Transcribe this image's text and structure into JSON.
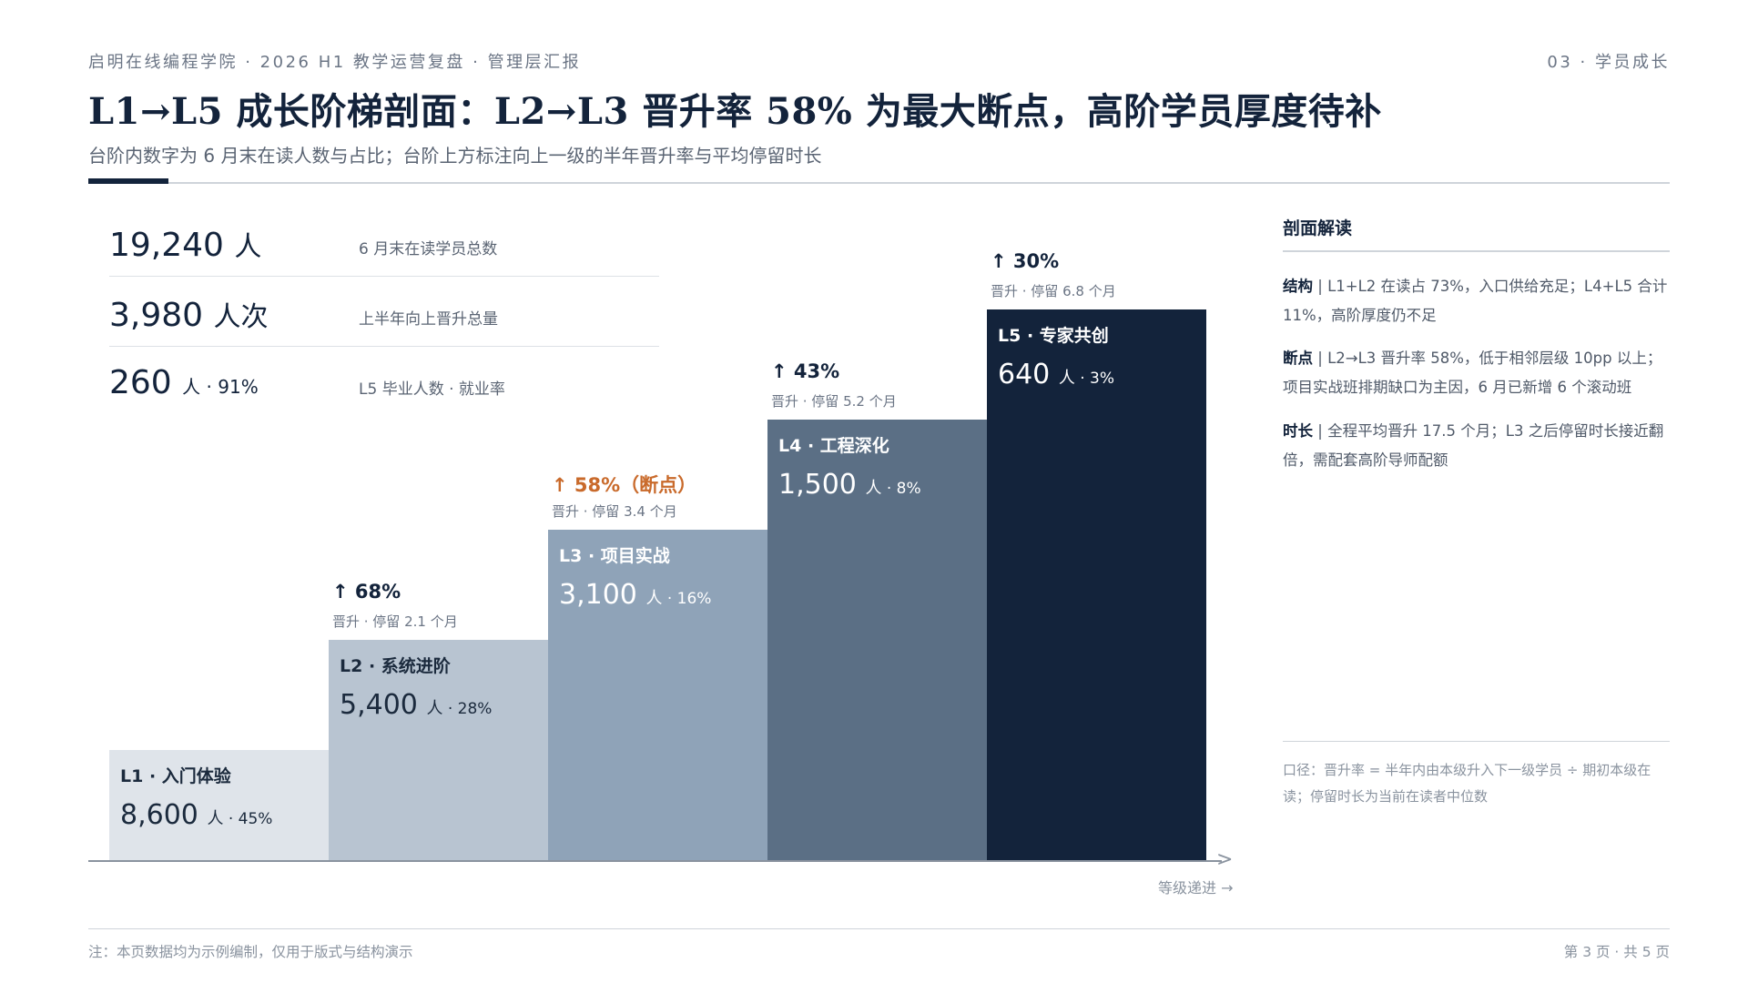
{
  "header": {
    "org_line": "启明在线编程学院 · 2026 H1 教学运营复盘 · 管理层汇报",
    "section": "03 · 学员成长",
    "title": "L1→L5 成长阶梯剖面：L2→L3 晋升率 58% 为最大断点，高阶学员厚度待补",
    "subtitle": "台阶内数字为 6 月末在读人数与占比；台阶上方标注向上一级的半年晋升率与平均停留时长"
  },
  "kpis": [
    {
      "value": "19,240",
      "unit": "人",
      "label": "6 月末在读学员总数"
    },
    {
      "value": "3,980",
      "unit": "人次",
      "label": "上半年向上晋升总量"
    },
    {
      "value": "260",
      "unit": "人 · 91%",
      "label": "L5 毕业人数 · 就业率"
    }
  ],
  "chart_data": {
    "type": "bar",
    "title": "",
    "xlabel": "等级递进 →",
    "ylabel": "",
    "categories": [
      "L1 · 入门体验",
      "L2 · 系统进阶",
      "L3 · 项目实战",
      "L4 · 工程深化",
      "L5 · 专家共创"
    ],
    "steps": [
      {
        "name": "L1 · 入门体验",
        "count": "8,600",
        "unit": "人",
        "share": "45%",
        "color": "#dfe4ea",
        "text_color": "#1b2a3d"
      },
      {
        "name": "L2 · 系统进阶",
        "count": "5,400",
        "unit": "人",
        "share": "28%",
        "color": "#b8c4d1",
        "text_color": "#1b2a3d",
        "rate": "↑ 68%",
        "rate_sub": "晋升 · 停留 2.1 个月",
        "break_point": false
      },
      {
        "name": "L3 · 项目实战",
        "count": "3,100",
        "unit": "人",
        "share": "16%",
        "color": "#8fa3b8",
        "text_color": "#ffffff",
        "rate": "↑ 58%（断点）",
        "rate_sub": "晋升 · 停留 3.4 个月",
        "break_point": true
      },
      {
        "name": "L4 · 工程深化",
        "count": "1,500",
        "unit": "人",
        "share": "8%",
        "color": "#5b6f85",
        "text_color": "#ffffff",
        "rate": "↑ 43%",
        "rate_sub": "晋升 · 停留 5.2 个月",
        "break_point": false
      },
      {
        "name": "L5 · 专家共创",
        "count": "640",
        "unit": "人",
        "share": "3%",
        "color": "#13233b",
        "text_color": "#ffffff",
        "rate": "↑ 30%",
        "rate_sub": "晋升 · 停留 6.8 个月",
        "break_point": false
      }
    ],
    "promotion_rates_pct": [
      68,
      58,
      43,
      30
    ],
    "avg_stay_months": [
      2.1,
      3.4,
      5.2,
      6.8
    ],
    "values": [
      8600,
      5400,
      3100,
      1500,
      640
    ],
    "shares_pct": [
      45,
      28,
      16,
      8,
      3
    ],
    "grid": false,
    "accent_color": "#c96a2b"
  },
  "side": {
    "title": "剖面解读",
    "notes": [
      {
        "key": "结构",
        "text": "L1+L2 在读占 73%，入口供给充足；L4+L5 合计 11%，高阶厚度仍不足"
      },
      {
        "key": "断点",
        "text": "L2→L3 晋升率 58%，低于相邻层级 10pp 以上；项目实战班排期缺口为主因，6 月已新增 6 个滚动班"
      },
      {
        "key": "时长",
        "text": "全程平均晋升 17.5 个月；L3 之后停留时长接近翻倍，需配套高阶导师配额"
      }
    ],
    "caliber": "口径：晋升率 = 半年内由本级升入下一级学员 ÷ 期初本级在读；停留时长为当前在读者中位数"
  },
  "footer": {
    "note": "注：本页数据均为示例编制，仅用于版式与结构演示",
    "page": "第 3 页 · 共 5 页"
  }
}
